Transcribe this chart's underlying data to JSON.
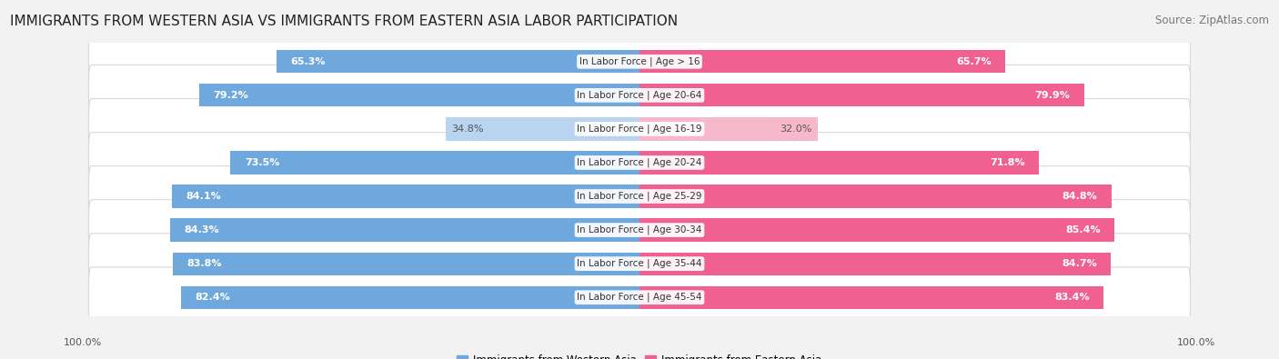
{
  "title": "IMMIGRANTS FROM WESTERN ASIA VS IMMIGRANTS FROM EASTERN ASIA LABOR PARTICIPATION",
  "source": "Source: ZipAtlas.com",
  "categories": [
    "In Labor Force | Age > 16",
    "In Labor Force | Age 20-64",
    "In Labor Force | Age 16-19",
    "In Labor Force | Age 20-24",
    "In Labor Force | Age 25-29",
    "In Labor Force | Age 30-34",
    "In Labor Force | Age 35-44",
    "In Labor Force | Age 45-54"
  ],
  "western_asia": [
    65.3,
    79.2,
    34.8,
    73.5,
    84.1,
    84.3,
    83.8,
    82.4
  ],
  "eastern_asia": [
    65.7,
    79.9,
    32.0,
    71.8,
    84.8,
    85.4,
    84.7,
    83.4
  ],
  "western_color": "#6fa8dc",
  "eastern_color": "#f06090",
  "western_color_light": "#b8d4ee",
  "eastern_color_light": "#f8b8cc",
  "bg_color": "#f2f2f2",
  "row_bg_color": "#ffffff",
  "row_border_color": "#d8d8d8",
  "legend_western": "Immigrants from Western Asia",
  "legend_eastern": "Immigrants from Eastern Asia",
  "label_color_dark": "#555555",
  "label_color_white": "#ffffff",
  "max_val": 100.0,
  "title_fontsize": 11,
  "source_fontsize": 8.5,
  "value_fontsize": 8,
  "cat_fontsize": 7.5,
  "axis_fontsize": 8
}
